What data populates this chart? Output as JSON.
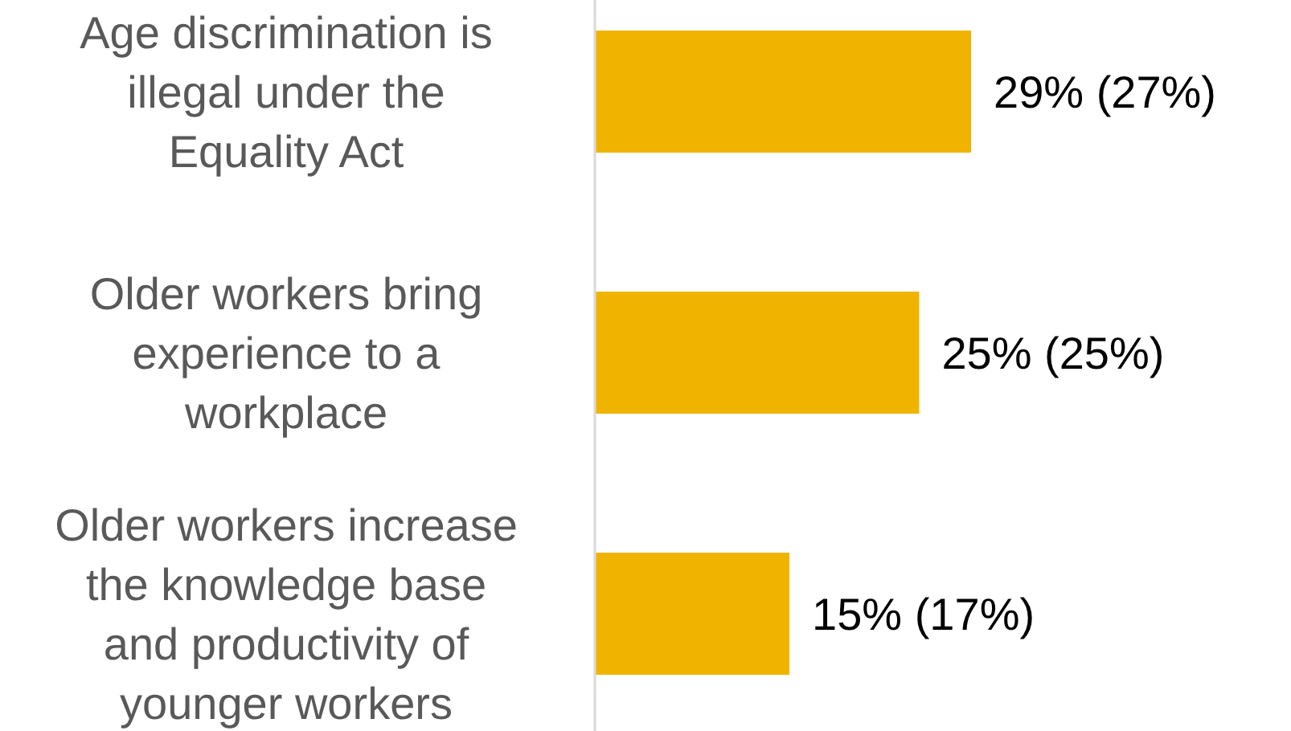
{
  "chart_data": {
    "type": "bar",
    "orientation": "horizontal",
    "categories": [
      "Age discrimination is illegal under the Equality Act",
      "Older workers bring experience to a workplace",
      "Older workers increase the knowledge base and productivity of younger workers"
    ],
    "values": [
      29,
      25,
      15
    ],
    "value_labels": [
      "29% (27%)",
      "25% (25%)",
      "15% (17%)"
    ],
    "color": "#f0b400",
    "tick_labels": "y"
  }
}
